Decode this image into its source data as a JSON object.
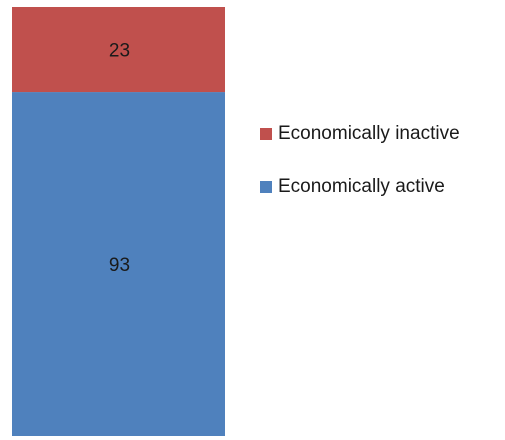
{
  "chart_data": {
    "type": "bar",
    "stacked": true,
    "categories": [
      ""
    ],
    "series": [
      {
        "name": "Economically active",
        "values": [
          93
        ],
        "color": "#4F81BD"
      },
      {
        "name": "Economically inactive",
        "values": [
          23
        ],
        "color": "#C0504D"
      }
    ],
    "data_labels": true,
    "legend_position": "right",
    "grid": false
  },
  "legend": {
    "items": [
      {
        "label": "Economically inactive",
        "color": "#C0504D"
      },
      {
        "label": "Economically active",
        "color": "#4F81BD"
      }
    ]
  }
}
